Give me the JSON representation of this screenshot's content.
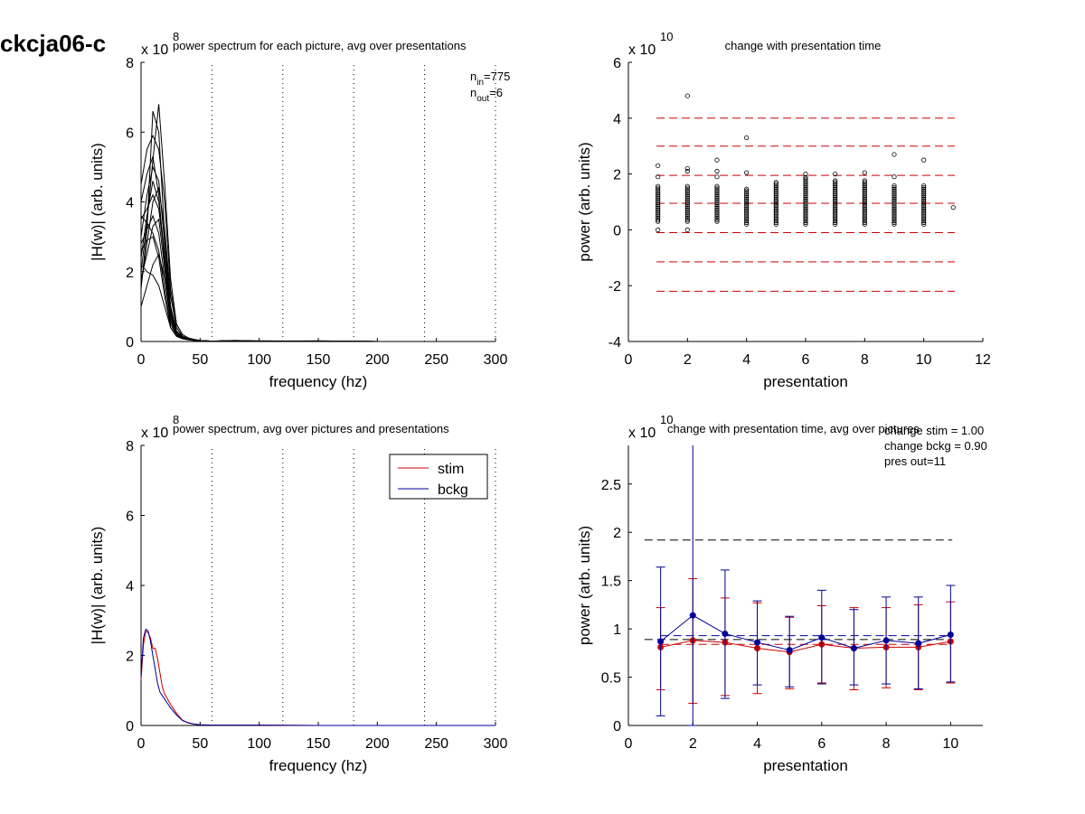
{
  "figure": {
    "suptitle": "ckcja06-c"
  },
  "chart_data": [
    {
      "id": "p1",
      "type": "line",
      "title": "power spectrum for each picture, avg over presentations",
      "xlabel": "frequency (hz)",
      "ylabel": "|H(w)| (arb. units)",
      "xlim": [
        0,
        300
      ],
      "ylim": [
        0,
        8
      ],
      "xticks": [
        0,
        50,
        100,
        150,
        200,
        250,
        300
      ],
      "yticks": [
        0,
        2,
        4,
        6,
        8
      ],
      "y_multiplier": "x 10",
      "y_exponent": "8",
      "vlines": [
        60,
        120,
        180,
        240,
        300
      ],
      "annotation": {
        "n_in_base": "n",
        "n_in_sub": "in",
        "n_in_value": "=775",
        "n_out_base": "n",
        "n_out_sub": "out",
        "n_out_value": "=6"
      },
      "series_count": 775,
      "color": "#000000",
      "x": [
        0,
        5,
        10,
        15,
        20,
        25,
        30,
        35,
        40,
        45,
        50,
        60,
        80,
        100,
        150,
        200,
        250,
        300
      ],
      "representative_series": [
        {
          "values": [
            1.5,
            3.2,
            6.6,
            6.0,
            3.0,
            1.0,
            0.3,
            0.15,
            0.08,
            0.05,
            0.03,
            0.01,
            0.03,
            0.01,
            0.02,
            0.0,
            0.0,
            0.0
          ]
        },
        {
          "values": [
            4.5,
            5.5,
            5.9,
            5.5,
            4.0,
            1.5,
            0.5,
            0.2,
            0.1,
            0.06,
            0.03,
            0.01,
            0.02,
            0.01,
            0.01,
            0.0,
            0.0,
            0.0
          ]
        },
        {
          "values": [
            2.0,
            3.4,
            5.2,
            6.8,
            4.5,
            1.8,
            0.5,
            0.2,
            0.1,
            0.06,
            0.03,
            0.01,
            0.03,
            0.02,
            0.01,
            0.0,
            0.0,
            0.0
          ]
        },
        {
          "values": [
            3.5,
            3.8,
            4.2,
            3.8,
            2.4,
            0.8,
            0.25,
            0.12,
            0.07,
            0.05,
            0.03,
            0.01,
            0.02,
            0.01,
            0.01,
            0.0,
            0.0,
            0.0
          ]
        },
        {
          "values": [
            1.8,
            2.5,
            3.3,
            3.5,
            2.1,
            0.6,
            0.2,
            0.1,
            0.06,
            0.04,
            0.02,
            0.01,
            0.02,
            0.01,
            0.01,
            0.0,
            0.0,
            0.0
          ]
        },
        {
          "values": [
            2.6,
            2.9,
            3.0,
            2.4,
            1.3,
            0.4,
            0.15,
            0.08,
            0.05,
            0.03,
            0.02,
            0.01,
            0.02,
            0.01,
            0.01,
            0.0,
            0.0,
            0.0
          ]
        },
        {
          "values": [
            1.0,
            1.6,
            2.2,
            2.5,
            1.8,
            0.7,
            0.25,
            0.1,
            0.06,
            0.04,
            0.02,
            0.01,
            0.02,
            0.01,
            0.01,
            0.0,
            0.0,
            0.0
          ]
        },
        {
          "values": [
            3.0,
            4.2,
            5.0,
            4.6,
            2.8,
            1.0,
            0.3,
            0.12,
            0.07,
            0.04,
            0.02,
            0.01,
            0.02,
            0.01,
            0.01,
            0.0,
            0.0,
            0.0
          ]
        },
        {
          "values": [
            2.2,
            2.0,
            1.9,
            1.6,
            1.0,
            0.4,
            0.15,
            0.08,
            0.05,
            0.03,
            0.02,
            0.01,
            0.02,
            0.01,
            0.01,
            0.0,
            0.0,
            0.0
          ]
        },
        {
          "values": [
            4.0,
            4.8,
            5.3,
            4.2,
            2.2,
            0.7,
            0.2,
            0.1,
            0.06,
            0.04,
            0.02,
            0.01,
            0.02,
            0.01,
            0.01,
            0.0,
            0.0,
            0.0
          ]
        },
        {
          "values": [
            1.6,
            2.8,
            4.0,
            4.4,
            3.2,
            1.3,
            0.4,
            0.15,
            0.08,
            0.05,
            0.03,
            0.01,
            0.02,
            0.01,
            0.01,
            0.0,
            0.0,
            0.0
          ]
        },
        {
          "values": [
            2.8,
            3.2,
            3.6,
            3.1,
            1.8,
            0.6,
            0.2,
            0.1,
            0.06,
            0.04,
            0.02,
            0.01,
            0.02,
            0.01,
            0.01,
            0.0,
            0.0,
            0.0
          ]
        },
        {
          "values": [
            3.6,
            3.4,
            3.1,
            2.6,
            1.5,
            0.5,
            0.18,
            0.09,
            0.05,
            0.03,
            0.02,
            0.01,
            0.02,
            0.01,
            0.01,
            0.0,
            0.0,
            0.0
          ]
        },
        {
          "values": [
            2.4,
            3.6,
            4.6,
            4.0,
            2.5,
            0.9,
            0.28,
            0.12,
            0.07,
            0.04,
            0.02,
            0.01,
            0.02,
            0.01,
            0.01,
            0.0,
            0.0,
            0.0
          ]
        }
      ]
    },
    {
      "id": "p2",
      "type": "scatter",
      "title": "change with presentation time",
      "xlabel": "presentation",
      "ylabel": "power (arb. units)",
      "xlim": [
        0,
        12
      ],
      "ylim": [
        -4,
        6
      ],
      "xticks": [
        0,
        2,
        4,
        6,
        8,
        10,
        12
      ],
      "yticks": [
        -4,
        -2,
        0,
        2,
        4,
        6
      ],
      "y_multiplier": "x 10",
      "y_exponent": "10",
      "hlines": [
        4.0,
        3.0,
        1.95,
        0.95,
        -0.1,
        -1.15,
        -2.2
      ],
      "hline_range": [
        0.95,
        11.05
      ],
      "hline_color": "#cc0000",
      "marker_color": "#000000",
      "points": [
        {
          "x": 1,
          "min": 0.3,
          "max": 1.6,
          "outliers": [
            0.0,
            1.9,
            2.3
          ]
        },
        {
          "x": 2,
          "min": 0.3,
          "max": 1.6,
          "outliers": [
            0.0,
            2.1,
            2.2,
            4.8
          ]
        },
        {
          "x": 3,
          "min": 0.3,
          "max": 1.6,
          "outliers": [
            1.9,
            2.1,
            2.5
          ]
        },
        {
          "x": 4,
          "min": 0.2,
          "max": 1.5,
          "outliers": [
            2.05,
            3.3
          ]
        },
        {
          "x": 5,
          "min": 0.2,
          "max": 1.7,
          "outliers": []
        },
        {
          "x": 6,
          "min": 0.2,
          "max": 1.9,
          "outliers": [
            2.0
          ]
        },
        {
          "x": 7,
          "min": 0.2,
          "max": 1.8,
          "outliers": [
            2.0
          ]
        },
        {
          "x": 8,
          "min": 0.2,
          "max": 1.8,
          "outliers": [
            2.05
          ]
        },
        {
          "x": 9,
          "min": 0.2,
          "max": 1.6,
          "outliers": [
            1.9,
            2.7
          ]
        },
        {
          "x": 10,
          "min": 0.2,
          "max": 1.6,
          "outliers": [
            2.5
          ]
        },
        {
          "x": 11,
          "min": 0.8,
          "max": 0.8,
          "outliers": []
        }
      ]
    },
    {
      "id": "p3",
      "type": "line",
      "title": "power spectrum, avg over pictures and presentations",
      "xlabel": "frequency (hz)",
      "ylabel": "|H(w)| (arb. units)",
      "xlim": [
        0,
        300
      ],
      "ylim": [
        0,
        8
      ],
      "xticks": [
        0,
        50,
        100,
        150,
        200,
        250,
        300
      ],
      "yticks": [
        0,
        2,
        4,
        6,
        8
      ],
      "y_multiplier": "x 10",
      "y_exponent": "8",
      "vlines": [
        60,
        120,
        180,
        240,
        300
      ],
      "legend": {
        "position": "top-right",
        "entries": [
          "stim",
          "bckg"
        ]
      },
      "x": [
        0,
        2,
        4,
        6,
        8,
        10,
        12,
        14,
        16,
        18,
        20,
        25,
        30,
        35,
        40,
        45,
        50,
        60,
        80,
        100,
        150,
        200,
        250,
        300
      ],
      "series": [
        {
          "name": "stim",
          "color": "#cc0000",
          "values": [
            1.3,
            2.3,
            2.7,
            2.65,
            2.5,
            2.2,
            2.2,
            1.9,
            1.5,
            1.1,
            0.9,
            0.6,
            0.35,
            0.15,
            0.08,
            0.04,
            0.02,
            0.01,
            0.01,
            0.01,
            0.0,
            0.0,
            0.0,
            0.0
          ]
        },
        {
          "name": "bckg",
          "color": "#000099",
          "values": [
            1.4,
            2.5,
            2.75,
            2.7,
            2.4,
            2.0,
            1.6,
            1.2,
            0.95,
            0.85,
            0.75,
            0.5,
            0.3,
            0.14,
            0.07,
            0.04,
            0.02,
            0.01,
            0.01,
            0.01,
            0.0,
            0.0,
            0.0,
            0.0
          ]
        }
      ]
    },
    {
      "id": "p4",
      "type": "line",
      "title": "change with presentation time, avg over pictures",
      "xlabel": "presentation",
      "ylabel": "power (arb. units)",
      "xlim": [
        0,
        11
      ],
      "ylim": [
        0,
        2.9
      ],
      "xticks": [
        0,
        2,
        4,
        6,
        8,
        10
      ],
      "yticks": [
        0,
        0.5,
        1,
        1.5,
        2,
        2.5
      ],
      "y_multiplier": "x 10",
      "y_exponent": "10",
      "annotation_lines": [
        "change stim = 1.00",
        "change bckg = 0.90",
        "pres out=11"
      ],
      "hlines": [
        {
          "y": 1.92,
          "x0": 0.5,
          "x1": 10.05,
          "color": "#000000"
        },
        {
          "y": 0.89,
          "x0": 0.5,
          "x1": 10.05,
          "color": "#000000"
        },
        {
          "y": 0.93,
          "x0": 1.0,
          "x1": 10.0,
          "color": "#000099"
        },
        {
          "y": 0.84,
          "x0": 1.0,
          "x1": 10.0,
          "color": "#cc0000"
        }
      ],
      "x": [
        1,
        2,
        3,
        4,
        5,
        6,
        7,
        8,
        9,
        10
      ],
      "series": [
        {
          "name": "stim",
          "color": "#cc0000",
          "values": [
            0.81,
            0.88,
            0.86,
            0.8,
            0.76,
            0.84,
            0.8,
            0.81,
            0.81,
            0.87
          ],
          "err_low": [
            0.37,
            0.23,
            0.31,
            0.33,
            0.38,
            0.44,
            0.37,
            0.39,
            0.37,
            0.44
          ],
          "err_high": [
            1.22,
            1.52,
            1.32,
            1.27,
            1.12,
            1.24,
            1.22,
            1.22,
            1.25,
            1.28
          ]
        },
        {
          "name": "bckg",
          "color": "#000099",
          "values": [
            0.87,
            1.14,
            0.95,
            0.86,
            0.78,
            0.91,
            0.8,
            0.88,
            0.85,
            0.94
          ],
          "err_low": [
            0.1,
            0.0,
            0.28,
            0.42,
            0.4,
            0.43,
            0.42,
            0.43,
            0.38,
            0.45
          ],
          "err_high": [
            1.64,
            2.9,
            1.61,
            1.29,
            1.13,
            1.4,
            1.2,
            1.33,
            1.33,
            1.45
          ]
        }
      ]
    }
  ]
}
